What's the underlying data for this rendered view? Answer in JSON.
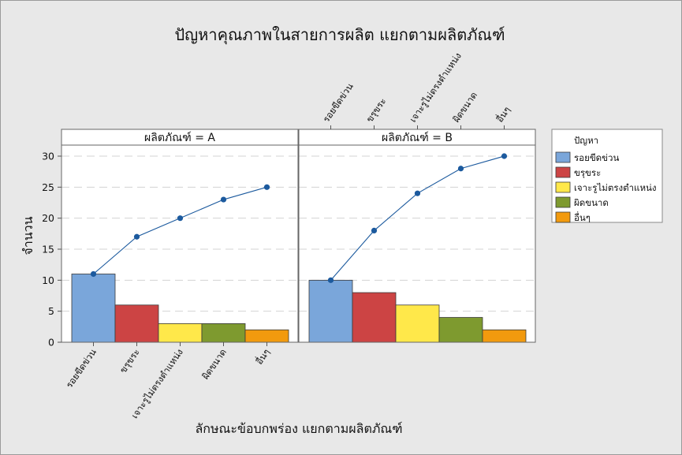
{
  "chart_data": {
    "type": "bar",
    "title": "ปัญหาคุณภาพในสายการผลิต แยกตามผลิตภัณฑ์",
    "xlabel": "ลักษณะข้อบกพร่อง แยกตามผลิตภัณฑ์",
    "ylabel": "จำนวน",
    "ylim": [
      0,
      32
    ],
    "yticks": [
      0,
      5,
      10,
      15,
      20,
      25,
      30
    ],
    "grid": true,
    "legend_placement": "right",
    "legend_title": "ปัญหา",
    "categories": [
      "รอยขีดข่วน",
      "ขรุขระ",
      "เจาะรูไม่ตรงตำแหน่ง",
      "ผิดขนาด",
      "อื่นๆ"
    ],
    "colors": [
      "#7aa6da",
      "#cc4444",
      "#ffe84a",
      "#7e9a2f",
      "#f29a0e"
    ],
    "line_color": "#1c5a9e",
    "panels": [
      {
        "label": "ผลิตภัณฑ์ = A",
        "values": [
          11,
          6,
          3,
          3,
          2
        ],
        "cumulative": [
          11,
          17,
          20,
          23,
          25
        ]
      },
      {
        "label": "ผลิตภัณฑ์ = B",
        "values": [
          10,
          8,
          6,
          4,
          2
        ],
        "cumulative": [
          10,
          18,
          24,
          28,
          30
        ]
      }
    ]
  }
}
